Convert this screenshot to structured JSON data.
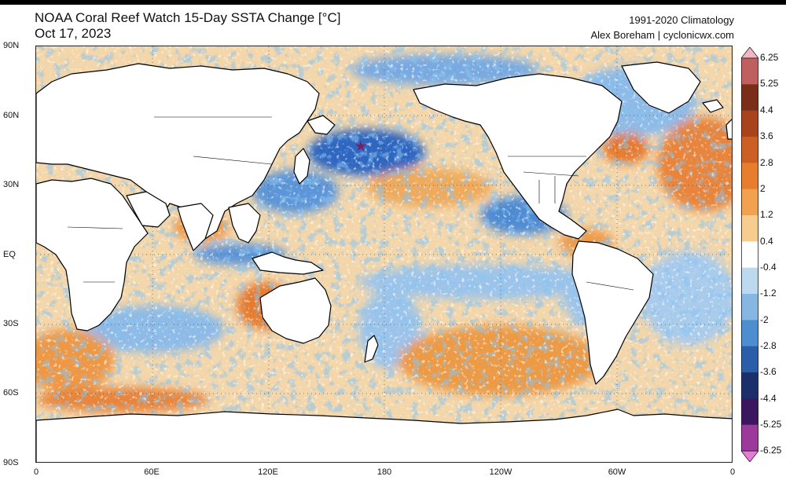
{
  "header": {
    "title": "NOAA Coral Reef Watch 15-Day SSTA Change [°C]",
    "date": "Oct 17, 2023",
    "climatology": "1991-2020 Climatology",
    "credit": "Alex Boreham | cyclonicwx.com"
  },
  "axes": {
    "lat_labels": [
      "90N",
      "60N",
      "30N",
      "EQ",
      "30S",
      "60S",
      "90S"
    ],
    "lon_labels": [
      "0",
      "60E",
      "120E",
      "180",
      "120W",
      "60W",
      "0"
    ]
  },
  "colorbar": {
    "labels": [
      "6.25",
      "5.25",
      "4.4",
      "3.6",
      "2.8",
      "2",
      "1.2",
      "0.4",
      "-0.4",
      "-1.2",
      "-2",
      "-2.8",
      "-3.6",
      "-4.4",
      "-5.25",
      "-6.25"
    ],
    "colors": [
      "#f3b4c3",
      "#c05f5f",
      "#7a2e1a",
      "#a8431b",
      "#cc5f24",
      "#e67e2e",
      "#f2a150",
      "#f7cc8f",
      "#ffffff",
      "#bcd9f0",
      "#86b7e3",
      "#4d8ed0",
      "#2a5ea8",
      "#1c2f6d",
      "#3b1760",
      "#9b3a9a",
      "#e77ad9"
    ]
  },
  "map": {
    "land_color": "#ffffff",
    "ocean_base": "#f4ddb7",
    "coastline_color": "#000000"
  }
}
